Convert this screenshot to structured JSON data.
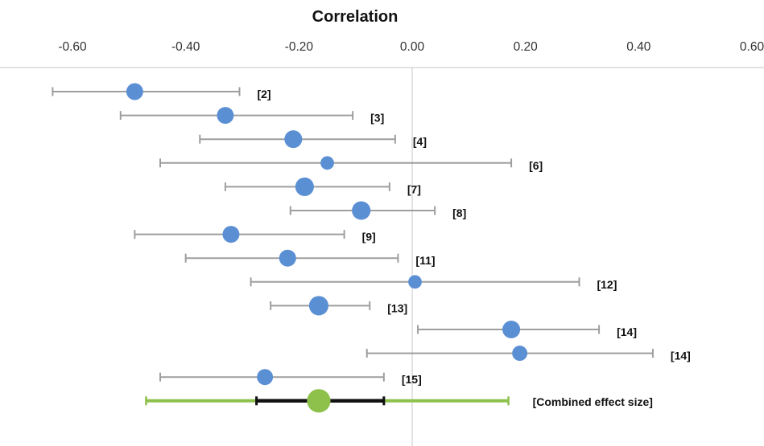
{
  "chart_data": {
    "type": "scatter",
    "subtype": "forest-plot",
    "title": "Correlation",
    "xlim": [
      -0.6,
      0.6
    ],
    "x_ticks": [
      "-0.60",
      "-0.40",
      "-0.20",
      "0.00",
      "0.20",
      "0.40",
      "0.60"
    ],
    "x_tick_values": [
      -0.6,
      -0.4,
      -0.2,
      0.0,
      0.2,
      0.4,
      0.6
    ],
    "reference_line": 0.0,
    "grid": false,
    "colors": {
      "point": "#5b8fd4",
      "whisker": "#9e9e9e",
      "combined_point": "#8dc14c",
      "combined_outer": "#8dc14c",
      "combined_inner": "#111111",
      "axis_line": "#d0d0d0"
    },
    "studies": [
      {
        "label": "[2]",
        "estimate": -0.49,
        "lower": -0.635,
        "upper": -0.305,
        "weight": 1.0
      },
      {
        "label": "[3]",
        "estimate": -0.33,
        "lower": -0.515,
        "upper": -0.105,
        "weight": 1.0
      },
      {
        "label": "[4]",
        "estimate": -0.21,
        "lower": -0.375,
        "upper": -0.03,
        "weight": 1.05
      },
      {
        "label": "[6]",
        "estimate": -0.15,
        "lower": -0.445,
        "upper": 0.175,
        "weight": 0.8
      },
      {
        "label": "[7]",
        "estimate": -0.19,
        "lower": -0.33,
        "upper": -0.04,
        "weight": 1.1
      },
      {
        "label": "[8]",
        "estimate": -0.09,
        "lower": -0.215,
        "upper": 0.04,
        "weight": 1.1
      },
      {
        "label": "[9]",
        "estimate": -0.32,
        "lower": -0.49,
        "upper": -0.12,
        "weight": 1.0
      },
      {
        "label": "[11]",
        "estimate": -0.22,
        "lower": -0.4,
        "upper": -0.025,
        "weight": 1.0
      },
      {
        "label": "[12]",
        "estimate": 0.005,
        "lower": -0.285,
        "upper": 0.295,
        "weight": 0.8
      },
      {
        "label": "[13]",
        "estimate": -0.165,
        "lower": -0.25,
        "upper": -0.075,
        "weight": 1.15
      },
      {
        "label": "[14]",
        "estimate": 0.175,
        "lower": 0.01,
        "upper": 0.33,
        "weight": 1.05
      },
      {
        "label": "[14]",
        "estimate": 0.19,
        "lower": -0.08,
        "upper": 0.425,
        "weight": 0.9
      },
      {
        "label": "[15]",
        "estimate": -0.26,
        "lower": -0.445,
        "upper": -0.05,
        "weight": 0.95
      }
    ],
    "combined": {
      "label": "[Combined effect size]",
      "estimate": -0.165,
      "lower": -0.47,
      "upper": 0.17,
      "inner_lower": -0.275,
      "inner_upper": -0.05,
      "weight": 1.2
    }
  }
}
